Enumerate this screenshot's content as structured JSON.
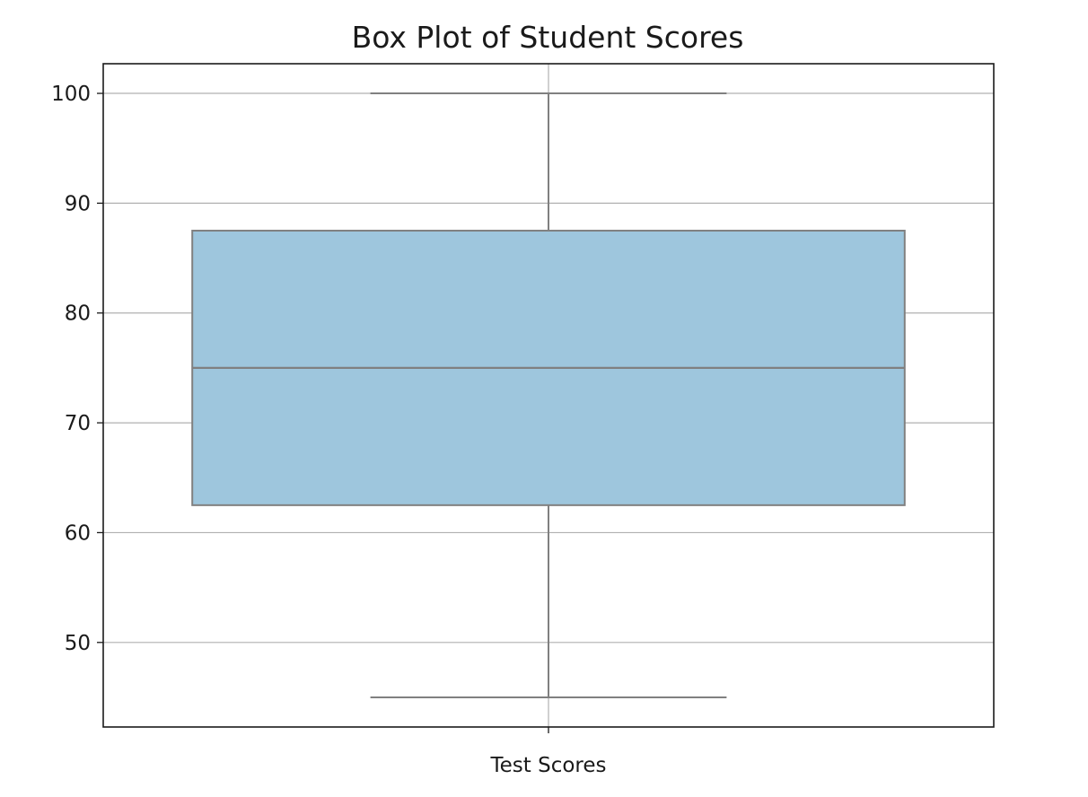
{
  "chart_data": {
    "type": "box",
    "title": "Box Plot of Student Scores",
    "xlabel": "",
    "ylabel": "",
    "categories": [
      "Test Scores"
    ],
    "boxes": [
      {
        "category": "Test Scores",
        "whisker_low": 45,
        "q1": 62.5,
        "median": 75,
        "q3": 87.5,
        "whisker_high": 100
      }
    ],
    "ylim": [
      42.3,
      102.7
    ],
    "yticks": [
      50,
      60,
      70,
      80,
      90,
      100
    ],
    "grid": true,
    "colors": {
      "box_fill": "#9ec6dd",
      "box_edge": "#808080"
    }
  }
}
